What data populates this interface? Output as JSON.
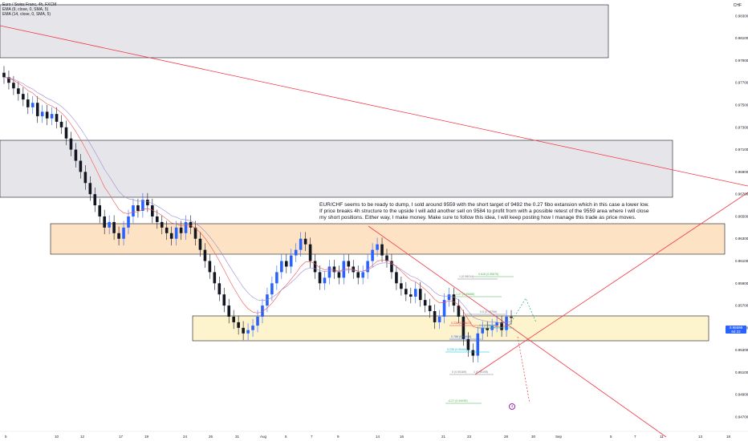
{
  "legend": {
    "title": "Euro / Swiss Franc, 4h, FXCM",
    "ema1": "EMA (9, close, 0, SMA, 5)",
    "ema2": "EMA (14, close, 0, SMA, 5)"
  },
  "currency": "CHF",
  "idea_text": "EUR/CHF seems to be ready to dump, I sold around 9559 with the short target of 9492 the 0.27 fibo extansion which in this case a lower low. If price breaks 4h structure to the upside I will add another sell on 9584 to profit from with a possible retest of the 9559 area where I will close my short positions. Either way, I make money. Make sure to follow this idea, I will keep posting how I manage this trade as price moves.",
  "price_tag": {
    "price": "0.95598",
    "time": "6d 22"
  },
  "marker_label": "4",
  "colors": {
    "up": "#2962ff",
    "down": "#131722",
    "ema_fast": "#ef5350",
    "ema_slow": "#9c8ad6",
    "trendline": "#f23645",
    "gray_zone": "#e6e6ea",
    "orange_zone": "#fde3c4",
    "yellow_zone": "#fdf3cc"
  },
  "chart_data": {
    "type": "candlestick",
    "title": "Euro / Swiss Franc, 4h, FXCM",
    "ylim": [
      0.947,
      0.984
    ],
    "y_ticks": [
      "0.98300",
      "0.98100",
      "0.97900",
      "0.97700",
      "0.97500",
      "0.97300",
      "0.97100",
      "0.96900",
      "0.96700",
      "0.96500",
      "0.96300",
      "0.96100",
      "0.95900",
      "0.95700",
      "0.95500",
      "0.95300",
      "0.95100",
      "0.94900",
      "0.94700"
    ],
    "x_ticks": [
      "5",
      "10",
      "12",
      "17",
      "19",
      "24",
      "26",
      "31",
      "Aug",
      "5",
      "7",
      "9",
      "14",
      "16",
      "21",
      "23",
      "28",
      "30",
      "Sep",
      "5",
      "7",
      "11",
      "13",
      "18",
      "20"
    ],
    "closes": [
      0.9775,
      0.977,
      0.9765,
      0.976,
      0.9755,
      0.9748,
      0.9752,
      0.974,
      0.9744,
      0.9738,
      0.9742,
      0.9735,
      0.973,
      0.972,
      0.971,
      0.97,
      0.969,
      0.968,
      0.967,
      0.966,
      0.965,
      0.964,
      0.9645,
      0.9635,
      0.963,
      0.964,
      0.965,
      0.966,
      0.9655,
      0.9665,
      0.966,
      0.965,
      0.9645,
      0.964,
      0.9635,
      0.963,
      0.964,
      0.9635,
      0.9645,
      0.964,
      0.963,
      0.962,
      0.961,
      0.96,
      0.959,
      0.958,
      0.957,
      0.956,
      0.9555,
      0.955,
      0.9545,
      0.9548,
      0.9552,
      0.956,
      0.957,
      0.958,
      0.959,
      0.96,
      0.961,
      0.9605,
      0.9615,
      0.962,
      0.963,
      0.9625,
      0.961,
      0.96,
      0.959,
      0.9595,
      0.9605,
      0.96,
      0.9595,
      0.961,
      0.9605,
      0.96,
      0.9595,
      0.96,
      0.961,
      0.962,
      0.9625,
      0.9615,
      0.961,
      0.96,
      0.959,
      0.9585,
      0.958,
      0.9578,
      0.9585,
      0.9575,
      0.957,
      0.9565,
      0.9555,
      0.956,
      0.9575,
      0.958,
      0.957,
      0.956,
      0.954,
      0.953,
      0.9525,
      0.9545,
      0.955,
      0.9548,
      0.9552,
      0.9555,
      0.9548,
      0.956,
      0.9559
    ],
    "fib_labels": [
      {
        "text": "1 (0.96014)",
        "color": "#787b86"
      },
      {
        "text": "0.618 (0.95875)",
        "color": "#4caf50"
      },
      {
        "text": "1.27 (0.95686)",
        "color": "#4caf50"
      },
      {
        "text": "0.5 (0.95756)",
        "color": "#787b86"
      },
      {
        "text": "0.236 (0.95621)",
        "color": "#f23645"
      },
      {
        "text": "0.5 (0.95629)",
        "color": "#00bcd4"
      },
      {
        "text": "0.786 (0.95486)",
        "color": "#2962ff"
      },
      {
        "text": "0.236 (0.95494)",
        "color": "#00bcd4"
      },
      {
        "text": "0 (0.95189)",
        "color": "#787b86"
      },
      {
        "text": "1 (0.95195)",
        "color": "#787b86"
      },
      {
        "text": "-0.27 (0.94935)",
        "color": "#4caf50"
      }
    ]
  }
}
